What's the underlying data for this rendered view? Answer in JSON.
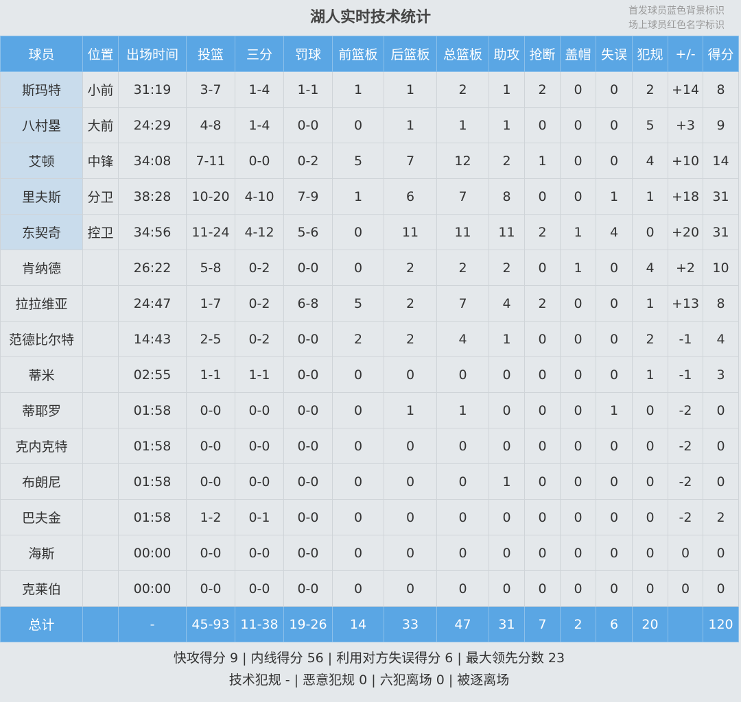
{
  "title": "湖人实时技术统计",
  "legend": [
    "首发球员蓝色背景标识",
    "场上球员红色名字标识"
  ],
  "columns": [
    "球员",
    "位置",
    "出场时间",
    "投篮",
    "三分",
    "罚球",
    "前篮板",
    "后篮板",
    "总篮板",
    "助攻",
    "抢断",
    "盖帽",
    "失误",
    "犯规",
    "+/-",
    "得分"
  ],
  "players": [
    {
      "starter": true,
      "cells": [
        "斯玛特",
        "小前",
        "31:19",
        "3-7",
        "1-4",
        "1-1",
        "1",
        "1",
        "2",
        "1",
        "2",
        "0",
        "0",
        "2",
        "+14",
        "8"
      ]
    },
    {
      "starter": true,
      "cells": [
        "八村塁",
        "大前",
        "24:29",
        "4-8",
        "1-4",
        "0-0",
        "0",
        "1",
        "1",
        "1",
        "0",
        "0",
        "0",
        "5",
        "+3",
        "9"
      ]
    },
    {
      "starter": true,
      "cells": [
        "艾顿",
        "中锋",
        "34:08",
        "7-11",
        "0-0",
        "0-2",
        "5",
        "7",
        "12",
        "2",
        "1",
        "0",
        "0",
        "4",
        "+10",
        "14"
      ]
    },
    {
      "starter": true,
      "cells": [
        "里夫斯",
        "分卫",
        "38:28",
        "10-20",
        "4-10",
        "7-9",
        "1",
        "6",
        "7",
        "8",
        "0",
        "0",
        "1",
        "1",
        "+18",
        "31"
      ]
    },
    {
      "starter": true,
      "cells": [
        "东契奇",
        "控卫",
        "34:56",
        "11-24",
        "4-12",
        "5-6",
        "0",
        "11",
        "11",
        "11",
        "2",
        "1",
        "4",
        "0",
        "+20",
        "31"
      ]
    },
    {
      "starter": false,
      "cells": [
        "肯纳德",
        "",
        "26:22",
        "5-8",
        "0-2",
        "0-0",
        "0",
        "2",
        "2",
        "2",
        "0",
        "1",
        "0",
        "4",
        "+2",
        "10"
      ]
    },
    {
      "starter": false,
      "cells": [
        "拉拉维亚",
        "",
        "24:47",
        "1-7",
        "0-2",
        "6-8",
        "5",
        "2",
        "7",
        "4",
        "2",
        "0",
        "0",
        "1",
        "+13",
        "8"
      ]
    },
    {
      "starter": false,
      "cells": [
        "范德比尔特",
        "",
        "14:43",
        "2-5",
        "0-2",
        "0-0",
        "2",
        "2",
        "4",
        "1",
        "0",
        "0",
        "0",
        "2",
        "-1",
        "4"
      ]
    },
    {
      "starter": false,
      "cells": [
        "蒂米",
        "",
        "02:55",
        "1-1",
        "1-1",
        "0-0",
        "0",
        "0",
        "0",
        "0",
        "0",
        "0",
        "0",
        "1",
        "-1",
        "3"
      ]
    },
    {
      "starter": false,
      "cells": [
        "蒂耶罗",
        "",
        "01:58",
        "0-0",
        "0-0",
        "0-0",
        "0",
        "1",
        "1",
        "0",
        "0",
        "0",
        "1",
        "0",
        "-2",
        "0"
      ]
    },
    {
      "starter": false,
      "cells": [
        "克内克特",
        "",
        "01:58",
        "0-0",
        "0-0",
        "0-0",
        "0",
        "0",
        "0",
        "0",
        "0",
        "0",
        "0",
        "0",
        "-2",
        "0"
      ]
    },
    {
      "starter": false,
      "cells": [
        "布朗尼",
        "",
        "01:58",
        "0-0",
        "0-0",
        "0-0",
        "0",
        "0",
        "0",
        "1",
        "0",
        "0",
        "0",
        "0",
        "-2",
        "0"
      ]
    },
    {
      "starter": false,
      "cells": [
        "巴夫金",
        "",
        "01:58",
        "1-2",
        "0-1",
        "0-0",
        "0",
        "0",
        "0",
        "0",
        "0",
        "0",
        "0",
        "0",
        "-2",
        "2"
      ]
    },
    {
      "starter": false,
      "cells": [
        "海斯",
        "",
        "00:00",
        "0-0",
        "0-0",
        "0-0",
        "0",
        "0",
        "0",
        "0",
        "0",
        "0",
        "0",
        "0",
        "0",
        "0"
      ]
    },
    {
      "starter": false,
      "cells": [
        "克莱伯",
        "",
        "00:00",
        "0-0",
        "0-0",
        "0-0",
        "0",
        "0",
        "0",
        "0",
        "0",
        "0",
        "0",
        "0",
        "0",
        "0"
      ]
    }
  ],
  "totals": [
    "总计",
    "",
    "-",
    "45-93",
    "11-38",
    "19-26",
    "14",
    "33",
    "47",
    "31",
    "7",
    "2",
    "6",
    "20",
    "",
    "120"
  ],
  "summary": [
    "快攻得分 9 | 内线得分 56 | 利用对方失误得分 6 | 最大领先分数 23",
    "技术犯规 - | 恶意犯规 0 | 六犯离场 0 | 被逐离场"
  ],
  "colors": {
    "header_bg": "#5aa6e4",
    "starter_bg": "#c9dcec",
    "page_bg": "#e4e8eb"
  }
}
